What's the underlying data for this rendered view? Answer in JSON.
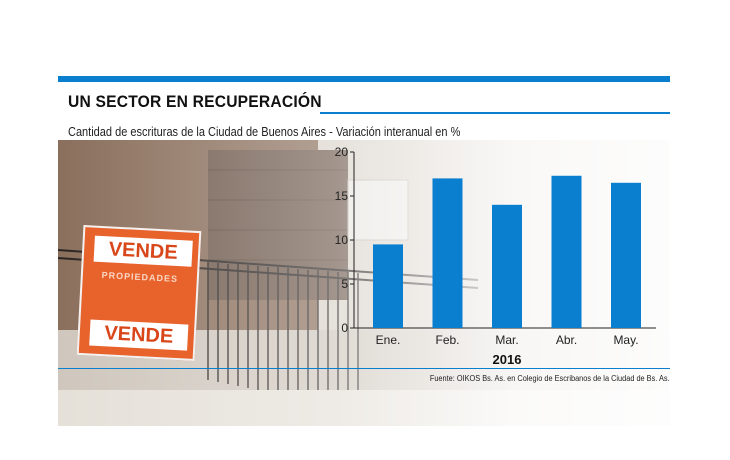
{
  "header": {
    "title": "UN SECTOR EN RECUPERACIÓN",
    "subtitle": "Cantidad de escrituras de la Ciudad de Buenos Aires - Variación interanual en %"
  },
  "photo": {
    "sign_top": "VENDE",
    "sign_middle": "PROPIEDADES",
    "sign_bottom": "VENDE"
  },
  "footer": {
    "source": "Fuente: OIKOS Bs. As. en Colegio de Escribanos de la Ciudad de Bs. As."
  },
  "colors": {
    "accent": "#0a7fd0",
    "bar": "#0a7fd0",
    "axis": "#222222"
  },
  "chart_data": {
    "type": "bar",
    "title": "UN SECTOR EN RECUPERACIÓN",
    "subtitle": "Cantidad de escrituras de la Ciudad de Buenos Aires - Variación interanual en %",
    "categories": [
      "Ene.",
      "Feb.",
      "Mar.",
      "Abr.",
      "May."
    ],
    "values": [
      9.5,
      17,
      14,
      17.3,
      16.5
    ],
    "xlabel": "2016",
    "ylabel": "",
    "ylim": [
      0,
      20
    ],
    "yticks": [
      "0",
      "5",
      "10",
      "15",
      "20"
    ],
    "grid": false,
    "legend": "none"
  }
}
